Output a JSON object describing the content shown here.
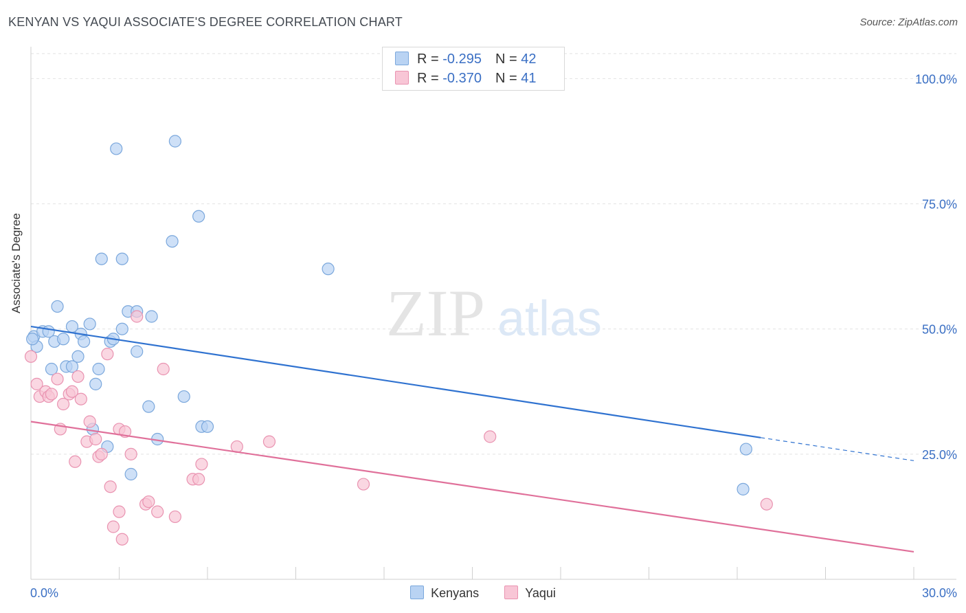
{
  "title": "KENYAN VS YAQUI ASSOCIATE'S DEGREE CORRELATION CHART",
  "source": "Source: ZipAtlas.com",
  "watermark": {
    "zip": "ZIP",
    "atlas": "atlas"
  },
  "colors": {
    "kenyans_fill": "#b9d3f3",
    "kenyans_stroke": "#7aa7dc",
    "kenyans_line": "#2f72d0",
    "yaqui_fill": "#f8c6d6",
    "yaqui_stroke": "#e992b0",
    "yaqui_line": "#e0709a",
    "tick_label": "#3a6fc4",
    "grid": "#e2e2e2"
  },
  "stats": [
    {
      "r_label": "R = ",
      "r": "-0.295",
      "n_label": "N = ",
      "n": "42"
    },
    {
      "r_label": "R = ",
      "r": "-0.370",
      "n_label": "N = ",
      "n": "41"
    }
  ],
  "chart_data": {
    "type": "scatter",
    "title": "KENYAN VS YAQUI ASSOCIATE'S DEGREE CORRELATION CHART",
    "xlabel": "",
    "ylabel": "Associate's Degree",
    "xlim": [
      0,
      30
    ],
    "ylim": [
      0,
      105
    ],
    "x_tick_labels": [
      {
        "value": 0,
        "label": "0.0%"
      },
      {
        "value": 30,
        "label": "30.0%"
      }
    ],
    "y_ticks": [
      {
        "value": 100,
        "label": "100.0%"
      },
      {
        "value": 75,
        "label": "75.0%"
      },
      {
        "value": 50,
        "label": "50.0%"
      },
      {
        "value": 25,
        "label": "25.0%"
      }
    ],
    "grid": true,
    "legend_position": "bottom-center",
    "series": [
      {
        "name": "Kenyans",
        "points": [
          [
            0.1,
            48.5
          ],
          [
            0.2,
            46.5
          ],
          [
            0.4,
            49.5
          ],
          [
            0.6,
            49.5
          ],
          [
            0.7,
            42.0
          ],
          [
            0.8,
            47.5
          ],
          [
            0.9,
            54.5
          ],
          [
            1.1,
            48.0
          ],
          [
            1.2,
            42.5
          ],
          [
            1.4,
            42.5
          ],
          [
            1.4,
            50.5
          ],
          [
            1.6,
            44.5
          ],
          [
            1.7,
            49.0
          ],
          [
            1.8,
            47.5
          ],
          [
            2.0,
            51.0
          ],
          [
            2.1,
            30.0
          ],
          [
            2.2,
            39.0
          ],
          [
            2.3,
            42.0
          ],
          [
            2.4,
            64.0
          ],
          [
            2.6,
            26.5
          ],
          [
            2.7,
            47.5
          ],
          [
            2.8,
            48.0
          ],
          [
            2.9,
            86.0
          ],
          [
            3.1,
            50.0
          ],
          [
            3.1,
            64.0
          ],
          [
            3.3,
            53.5
          ],
          [
            3.4,
            21.0
          ],
          [
            3.6,
            45.5
          ],
          [
            3.6,
            53.5
          ],
          [
            4.0,
            34.5
          ],
          [
            4.1,
            52.5
          ],
          [
            4.3,
            28.0
          ],
          [
            4.8,
            67.5
          ],
          [
            4.9,
            87.5
          ],
          [
            5.2,
            36.5
          ],
          [
            5.7,
            72.5
          ],
          [
            5.8,
            30.5
          ],
          [
            6.0,
            30.5
          ],
          [
            10.1,
            62.0
          ],
          [
            24.2,
            18.0
          ],
          [
            24.3,
            26.0
          ],
          [
            0.05,
            48.0
          ]
        ],
        "trend": {
          "x": [
            0,
            24.8
          ],
          "y": [
            50.5,
            28.3
          ],
          "dashed_to": {
            "x": 30,
            "y": 23.7
          }
        }
      },
      {
        "name": "Yaqui",
        "points": [
          [
            0.0,
            44.5
          ],
          [
            0.2,
            39.0
          ],
          [
            0.3,
            36.5
          ],
          [
            0.5,
            37.5
          ],
          [
            0.6,
            36.5
          ],
          [
            0.7,
            37.0
          ],
          [
            0.9,
            40.0
          ],
          [
            1.0,
            30.0
          ],
          [
            1.1,
            35.0
          ],
          [
            1.3,
            37.0
          ],
          [
            1.4,
            37.5
          ],
          [
            1.5,
            23.5
          ],
          [
            1.6,
            40.5
          ],
          [
            1.7,
            36.0
          ],
          [
            1.9,
            27.5
          ],
          [
            2.0,
            31.5
          ],
          [
            2.2,
            28.0
          ],
          [
            2.3,
            24.5
          ],
          [
            2.4,
            25.0
          ],
          [
            2.6,
            45.0
          ],
          [
            2.7,
            18.5
          ],
          [
            2.8,
            10.5
          ],
          [
            3.0,
            13.5
          ],
          [
            3.0,
            30.0
          ],
          [
            3.1,
            8.0
          ],
          [
            3.2,
            29.5
          ],
          [
            3.4,
            25.0
          ],
          [
            3.6,
            52.5
          ],
          [
            3.9,
            15.0
          ],
          [
            4.0,
            15.5
          ],
          [
            4.3,
            13.5
          ],
          [
            4.5,
            42.0
          ],
          [
            4.9,
            12.5
          ],
          [
            5.5,
            20.0
          ],
          [
            5.7,
            20.0
          ],
          [
            5.8,
            23.0
          ],
          [
            7.0,
            26.5
          ],
          [
            8.1,
            27.5
          ],
          [
            11.3,
            19.0
          ],
          [
            15.6,
            28.5
          ],
          [
            25.0,
            15.0
          ]
        ],
        "trend": {
          "x": [
            0,
            30
          ],
          "y": [
            31.5,
            5.5
          ]
        }
      }
    ]
  },
  "legend": [
    {
      "name": "Kenyans"
    },
    {
      "name": "Yaqui"
    }
  ]
}
